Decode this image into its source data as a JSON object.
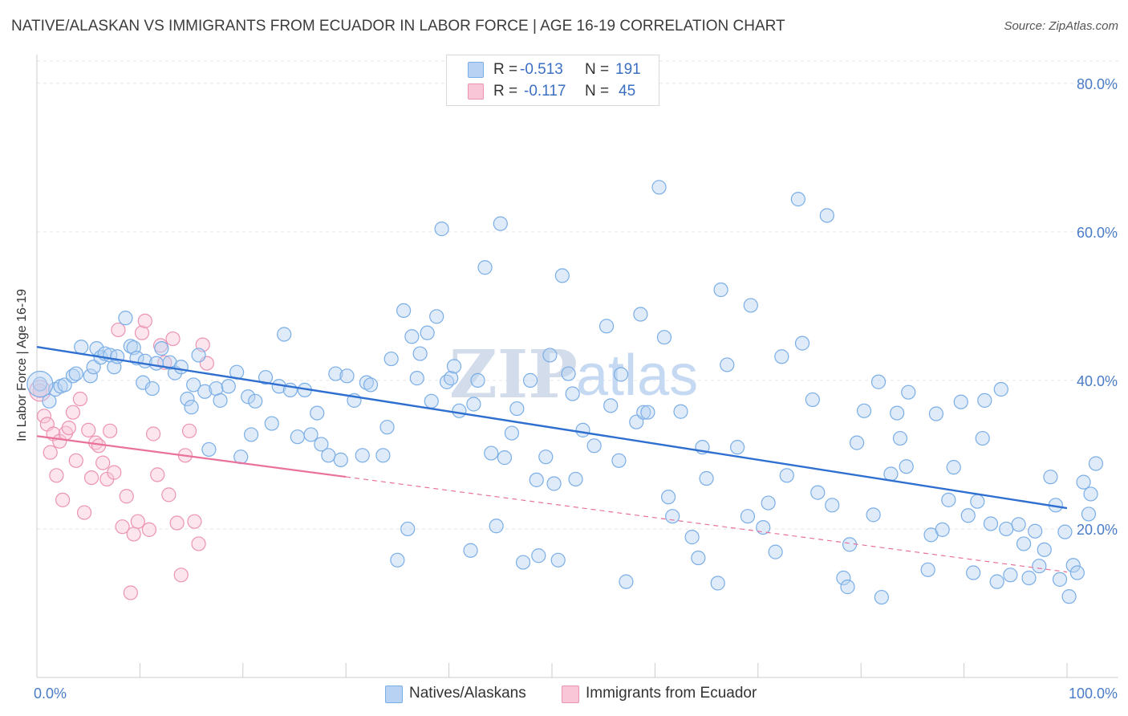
{
  "title": "NATIVE/ALASKAN VS IMMIGRANTS FROM ECUADOR IN LABOR FORCE | AGE 16-19 CORRELATION CHART",
  "source": "Source: ZipAtlas.com",
  "watermark": {
    "zip": "ZIP",
    "atlas": "atlas"
  },
  "stats": [
    {
      "r_label": "R =",
      "r_value": "-0.513",
      "n_label": "N =",
      "n_value": "191",
      "color": "#7aaee6",
      "fill": "#b7d2f2"
    },
    {
      "r_label": "R =",
      "r_value": "-0.117",
      "n_label": "N =",
      "n_value": "45",
      "color": "#ec93b3",
      "fill": "#f8c6d6"
    }
  ],
  "legend": [
    {
      "label": "Natives/Alaskans",
      "fill": "#b7d2f2",
      "color": "#7aaee6"
    },
    {
      "label": "Immigrants from Ecuador",
      "fill": "#f8c6d6",
      "color": "#ec93b3"
    }
  ],
  "colors": {
    "blue_line": "#2f6fd0",
    "pink_line": "#e8729b",
    "tick_text": "#4a7cc7",
    "grid": "#e6e6e6"
  },
  "chart_data": {
    "type": "scatter",
    "title": "NATIVE/ALASKAN VS IMMIGRANTS FROM ECUADOR IN LABOR FORCE | AGE 16-19 CORRELATION CHART",
    "xlabel": "",
    "ylabel": "In Labor Force | Age 16-19",
    "xlim": [
      0,
      100
    ],
    "ylim": [
      0,
      83
    ],
    "x_tick_labels": [
      "0.0%",
      "100.0%"
    ],
    "y_ticks": [
      20,
      40,
      60,
      80
    ],
    "y_tick_labels": [
      "20.0%",
      "40.0%",
      "60.0%",
      "80.0%"
    ],
    "grid": true,
    "legend_position": "bottom-center",
    "series": [
      {
        "name": "Natives/Alaskans",
        "r": -0.513,
        "n": 191,
        "trend": {
          "x": [
            0,
            100
          ],
          "y": [
            44.5,
            22.8
          ],
          "dashed_after": null
        },
        "points": [
          [
            0.3,
            39.5
          ],
          [
            1.2,
            37.2
          ],
          [
            1.8,
            38.8
          ],
          [
            2.3,
            39.2
          ],
          [
            2.7,
            39.4
          ],
          [
            3.5,
            40.6
          ],
          [
            3.8,
            40.9
          ],
          [
            4.3,
            44.5
          ],
          [
            5.2,
            40.6
          ],
          [
            5.5,
            41.8
          ],
          [
            5.8,
            44.3
          ],
          [
            6.2,
            43.1
          ],
          [
            6.6,
            43.6
          ],
          [
            7.1,
            43.4
          ],
          [
            7.5,
            41.8
          ],
          [
            7.8,
            43.2
          ],
          [
            8.6,
            48.4
          ],
          [
            9.1,
            44.6
          ],
          [
            9.4,
            44.4
          ],
          [
            9.7,
            43.0
          ],
          [
            10.3,
            39.7
          ],
          [
            10.5,
            42.6
          ],
          [
            11.2,
            38.9
          ],
          [
            11.6,
            42.3
          ],
          [
            12.1,
            44.3
          ],
          [
            12.9,
            42.4
          ],
          [
            13.4,
            41.0
          ],
          [
            14.0,
            41.8
          ],
          [
            14.6,
            37.5
          ],
          [
            15.0,
            36.4
          ],
          [
            15.2,
            39.4
          ],
          [
            15.7,
            43.4
          ],
          [
            16.3,
            38.5
          ],
          [
            16.7,
            30.7
          ],
          [
            17.4,
            38.9
          ],
          [
            17.8,
            37.3
          ],
          [
            18.6,
            39.2
          ],
          [
            19.4,
            41.1
          ],
          [
            19.8,
            29.7
          ],
          [
            20.5,
            37.8
          ],
          [
            20.8,
            32.7
          ],
          [
            21.2,
            37.2
          ],
          [
            22.2,
            40.4
          ],
          [
            22.8,
            34.2
          ],
          [
            23.5,
            39.2
          ],
          [
            24.0,
            46.2
          ],
          [
            24.6,
            38.7
          ],
          [
            25.3,
            32.4
          ],
          [
            26.0,
            38.7
          ],
          [
            26.6,
            32.7
          ],
          [
            27.2,
            35.6
          ],
          [
            27.6,
            31.4
          ],
          [
            28.3,
            29.9
          ],
          [
            29.0,
            40.9
          ],
          [
            29.5,
            29.3
          ],
          [
            30.1,
            40.6
          ],
          [
            30.8,
            37.3
          ],
          [
            31.6,
            29.9
          ],
          [
            32.0,
            39.7
          ],
          [
            32.4,
            39.4
          ],
          [
            33.6,
            29.9
          ],
          [
            34.0,
            33.7
          ],
          [
            34.4,
            42.9
          ],
          [
            35.0,
            15.8
          ],
          [
            35.6,
            49.4
          ],
          [
            36.0,
            20.0
          ],
          [
            36.4,
            45.9
          ],
          [
            36.9,
            40.3
          ],
          [
            37.2,
            43.6
          ],
          [
            37.9,
            46.4
          ],
          [
            38.3,
            37.2
          ],
          [
            38.8,
            48.6
          ],
          [
            39.3,
            60.4
          ],
          [
            39.8,
            39.8
          ],
          [
            40.2,
            40.3
          ],
          [
            40.5,
            41.9
          ],
          [
            41.0,
            35.9
          ],
          [
            42.1,
            17.1
          ],
          [
            42.4,
            36.8
          ],
          [
            42.8,
            40.0
          ],
          [
            43.5,
            55.2
          ],
          [
            44.1,
            30.2
          ],
          [
            44.6,
            20.4
          ],
          [
            45.0,
            61.1
          ],
          [
            45.4,
            29.6
          ],
          [
            46.1,
            32.9
          ],
          [
            46.6,
            36.2
          ],
          [
            47.2,
            15.5
          ],
          [
            47.9,
            40.0
          ],
          [
            48.5,
            26.6
          ],
          [
            48.7,
            16.4
          ],
          [
            49.4,
            29.7
          ],
          [
            49.8,
            43.4
          ],
          [
            50.2,
            26.1
          ],
          [
            50.6,
            15.8
          ],
          [
            51.0,
            54.1
          ],
          [
            51.6,
            40.9
          ],
          [
            52.0,
            38.2
          ],
          [
            52.3,
            26.7
          ],
          [
            53.0,
            33.3
          ],
          [
            54.1,
            31.2
          ],
          [
            55.3,
            47.3
          ],
          [
            55.7,
            36.6
          ],
          [
            56.5,
            29.2
          ],
          [
            56.7,
            40.8
          ],
          [
            57.2,
            12.9
          ],
          [
            58.2,
            34.4
          ],
          [
            58.6,
            48.9
          ],
          [
            58.9,
            35.7
          ],
          [
            59.3,
            35.7
          ],
          [
            60.4,
            66.0
          ],
          [
            60.9,
            45.8
          ],
          [
            61.3,
            24.3
          ],
          [
            61.7,
            21.7
          ],
          [
            62.5,
            35.8
          ],
          [
            63.6,
            18.9
          ],
          [
            64.2,
            16.1
          ],
          [
            64.6,
            31.0
          ],
          [
            65.0,
            26.8
          ],
          [
            66.1,
            12.7
          ],
          [
            66.4,
            52.2
          ],
          [
            67.0,
            42.1
          ],
          [
            68.0,
            31.0
          ],
          [
            69.0,
            21.7
          ],
          [
            69.3,
            50.1
          ],
          [
            70.5,
            20.2
          ],
          [
            71.0,
            23.5
          ],
          [
            71.7,
            16.9
          ],
          [
            72.3,
            43.2
          ],
          [
            72.8,
            27.2
          ],
          [
            73.9,
            64.4
          ],
          [
            74.3,
            45.0
          ],
          [
            75.3,
            37.4
          ],
          [
            75.8,
            24.9
          ],
          [
            76.7,
            62.2
          ],
          [
            77.2,
            23.2
          ],
          [
            78.3,
            13.4
          ],
          [
            78.7,
            12.2
          ],
          [
            78.9,
            17.9
          ],
          [
            79.6,
            31.6
          ],
          [
            80.3,
            35.9
          ],
          [
            81.2,
            21.9
          ],
          [
            81.7,
            39.8
          ],
          [
            82.0,
            10.8
          ],
          [
            82.9,
            27.4
          ],
          [
            83.5,
            35.6
          ],
          [
            83.8,
            32.2
          ],
          [
            84.4,
            28.4
          ],
          [
            84.6,
            38.4
          ],
          [
            86.5,
            14.5
          ],
          [
            86.8,
            19.2
          ],
          [
            87.3,
            35.5
          ],
          [
            87.9,
            19.9
          ],
          [
            88.5,
            23.9
          ],
          [
            89.0,
            28.3
          ],
          [
            89.7,
            37.1
          ],
          [
            90.4,
            21.8
          ],
          [
            90.9,
            14.1
          ],
          [
            91.3,
            23.7
          ],
          [
            91.8,
            32.2
          ],
          [
            92.0,
            37.3
          ],
          [
            92.6,
            20.7
          ],
          [
            93.2,
            12.9
          ],
          [
            93.6,
            38.8
          ],
          [
            94.1,
            20.0
          ],
          [
            94.5,
            13.8
          ],
          [
            95.3,
            20.6
          ],
          [
            95.8,
            18.0
          ],
          [
            96.3,
            13.4
          ],
          [
            96.9,
            19.7
          ],
          [
            97.3,
            15.0
          ],
          [
            97.8,
            17.2
          ],
          [
            98.4,
            27.0
          ],
          [
            98.9,
            23.2
          ],
          [
            99.3,
            13.2
          ],
          [
            99.8,
            19.6
          ],
          [
            100.2,
            10.9
          ],
          [
            100.6,
            15.1
          ],
          [
            101.0,
            14.1
          ],
          [
            101.6,
            26.3
          ],
          [
            102.1,
            22.0
          ],
          [
            102.3,
            24.7
          ],
          [
            102.8,
            28.8
          ]
        ]
      },
      {
        "name": "Immigrants from Ecuador",
        "r": -0.117,
        "n": 45,
        "trend": {
          "x": [
            0,
            100
          ],
          "y": [
            32.5,
            14.2
          ],
          "solid_until_x": 30
        },
        "points": [
          [
            0.3,
            38.6
          ],
          [
            0.7,
            35.2
          ],
          [
            1.0,
            34.1
          ],
          [
            1.3,
            30.3
          ],
          [
            1.6,
            32.8
          ],
          [
            1.9,
            27.2
          ],
          [
            2.2,
            31.8
          ],
          [
            2.5,
            23.9
          ],
          [
            2.8,
            32.9
          ],
          [
            3.1,
            33.6
          ],
          [
            3.5,
            35.7
          ],
          [
            3.8,
            29.2
          ],
          [
            4.2,
            37.5
          ],
          [
            4.6,
            22.2
          ],
          [
            5.0,
            33.3
          ],
          [
            5.3,
            26.9
          ],
          [
            5.7,
            31.6
          ],
          [
            6.0,
            31.2
          ],
          [
            6.4,
            28.9
          ],
          [
            6.8,
            26.7
          ],
          [
            7.1,
            33.2
          ],
          [
            7.5,
            27.6
          ],
          [
            7.9,
            46.8
          ],
          [
            8.3,
            20.3
          ],
          [
            8.7,
            24.4
          ],
          [
            9.1,
            11.4
          ],
          [
            9.4,
            19.3
          ],
          [
            9.8,
            21.0
          ],
          [
            10.2,
            46.4
          ],
          [
            10.5,
            48.0
          ],
          [
            10.9,
            19.9
          ],
          [
            11.3,
            32.8
          ],
          [
            11.7,
            27.3
          ],
          [
            12.0,
            44.7
          ],
          [
            12.4,
            42.4
          ],
          [
            12.8,
            24.6
          ],
          [
            13.2,
            45.6
          ],
          [
            13.6,
            20.8
          ],
          [
            14.0,
            13.8
          ],
          [
            14.4,
            29.9
          ],
          [
            14.8,
            33.2
          ],
          [
            15.3,
            21.0
          ],
          [
            15.7,
            18.0
          ],
          [
            16.1,
            44.8
          ],
          [
            16.5,
            42.3
          ]
        ]
      }
    ]
  }
}
